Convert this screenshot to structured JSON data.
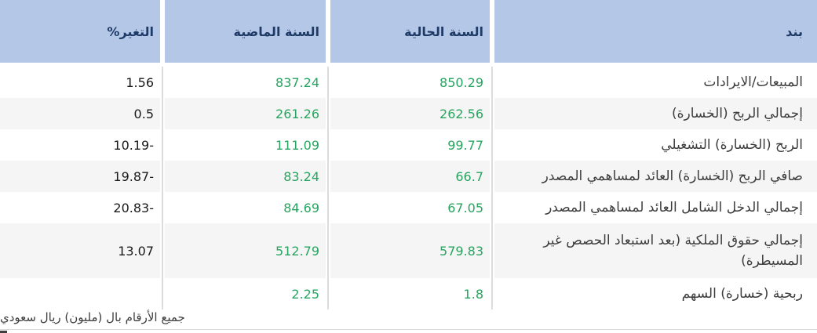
{
  "table": {
    "columns": {
      "item": "بند",
      "current_year": "السنة الحالية",
      "previous_year": "السنة الماضية",
      "change_pct": "التغير%"
    },
    "rows": [
      {
        "item": "المبيعات/الايرادات",
        "current": "850.29",
        "previous": "837.24",
        "change": "1.56"
      },
      {
        "item": "إجمالي الربح (الخسارة)",
        "current": "262.56",
        "previous": "261.26",
        "change": "0.5"
      },
      {
        "item": "الربح (الخسارة) التشغيلي",
        "current": "99.77",
        "previous": "111.09",
        "change": "-10.19"
      },
      {
        "item": "صافي الربح (الخسارة) العائد لمساهمي المصدر",
        "current": "66.7",
        "previous": "83.24",
        "change": "-19.87"
      },
      {
        "item": "إجمالي الدخل الشامل العائد لمساهمي المصدر",
        "current": "67.05",
        "previous": "84.69",
        "change": "-20.83"
      },
      {
        "item": "إجمالي حقوق الملكية (بعد استبعاد الحصص غير المسيطرة)",
        "current": "579.83",
        "previous": "512.79",
        "change": "13.07"
      },
      {
        "item": "ربحية (خسارة) السهم",
        "current": "1.8",
        "previous": "2.25",
        "change": ""
      }
    ]
  },
  "footer": {
    "note": "جميع الأرقام بال (مليون) ريال سعودي"
  },
  "colors": {
    "header_background": "#b4c7e7",
    "header_text": "#1e3a66",
    "value_positive_green": "#27a45f",
    "change_text": "#1a1a1a",
    "row_alternate_background": "#f5f5f5",
    "separator": "#dcdcdc"
  }
}
